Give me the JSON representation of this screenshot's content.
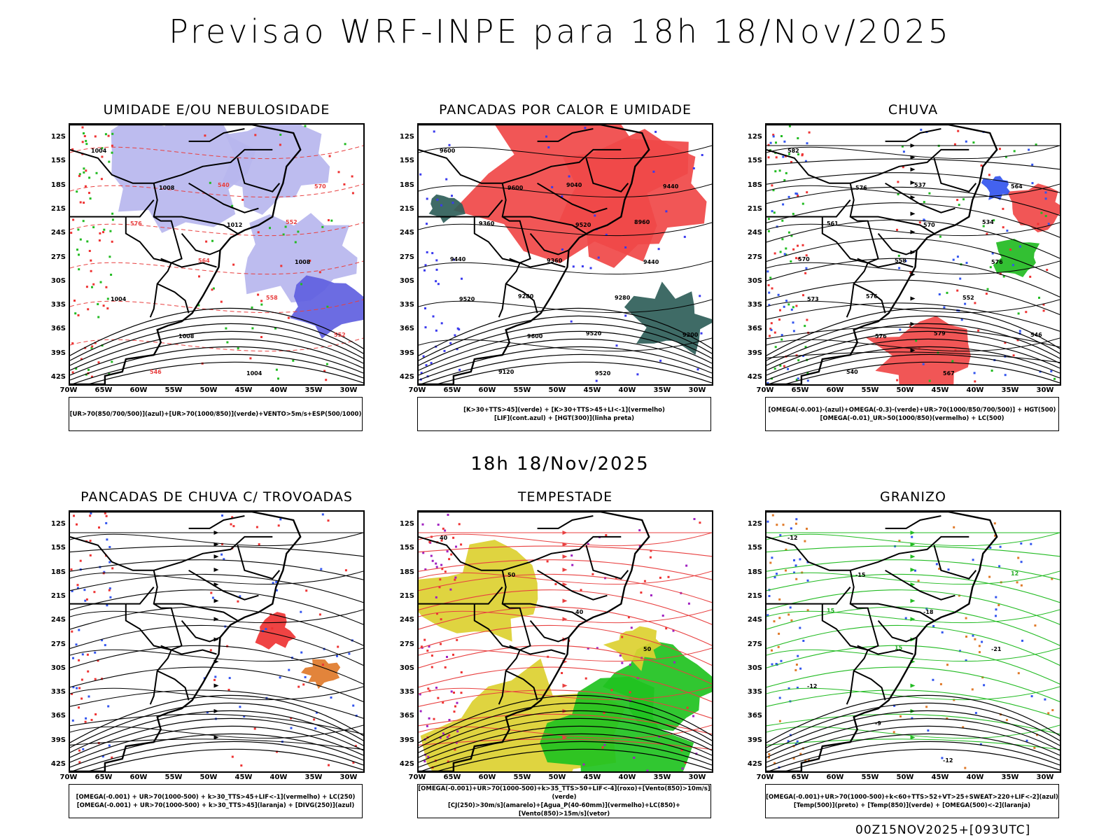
{
  "header": {
    "title": "Previsao WRF-INPE  para 18h 18/Nov/2025"
  },
  "mid_time": "18h 18/Nov/2025",
  "footer": "00Z15NOV2025+[093UTC]",
  "axes": {
    "lat_labels": [
      "12S",
      "15S",
      "18S",
      "21S",
      "24S",
      "27S",
      "30S",
      "33S",
      "36S",
      "39S",
      "42S"
    ],
    "lon_labels": [
      "70W",
      "65W",
      "60W",
      "55W",
      "50W",
      "45W",
      "40W",
      "35W",
      "30W"
    ]
  },
  "panels": [
    {
      "title": "UMIDADE E/OU NEBULOSIDADE",
      "legend": [
        "[UR>70(850/700/500)](azul)+[UR>70(1000/850)](verde)+VENTO>5m/s+ESP(500/1000)"
      ],
      "contour_labels": [
        "1004",
        "1008",
        "1012",
        "1008",
        "1004",
        "1008",
        "1004",
        "570",
        "576",
        "564",
        "558",
        "552",
        "546",
        "540",
        "552"
      ]
    },
    {
      "title": "PANCADAS POR CALOR E UMIDADE",
      "legend": [
        "[K>30+TTS>45](verde) + [K>30+TTS>45+LI<-1](vermelho)",
        "[LIF](cont.azul) + [HGT(300)](linha preta)"
      ],
      "contour_labels": [
        "9600",
        "9600",
        "9520",
        "9440",
        "9520",
        "9600",
        "9520",
        "9440",
        "9360",
        "9360",
        "9280",
        "9200",
        "9120",
        "9040",
        "8960",
        "9440",
        "9280",
        "9520"
      ]
    },
    {
      "title": "CHUVA",
      "legend": [
        "[OMEGA(-0.001)-(azul)+OMEGA(-0.3)-(verde)+UR>70(1000/850/700/500)] + HGT(500)",
        "[OMEGA(-0.01)_UR>50(1000/850)(vermelho) + LC(500)"
      ],
      "contour_labels": [
        "582",
        "576",
        "570",
        "576",
        "573",
        "576",
        "567",
        "564",
        "561",
        "558",
        "552",
        "546",
        "540",
        "537",
        "534",
        "570",
        "576",
        "579"
      ]
    },
    {
      "title": "PANCADAS DE CHUVA C/ TROVOADAS",
      "legend": [
        "[OMEGA(-0.001) + UR>70(1000-500) + k>30_TTS>45+LIF<-1](vermelho) + LC(250)",
        "[OMEGA(-0.001) + UR>70(1000-500) + k>30_TTS>45](laranja) + [DIVG(250)](azul)"
      ],
      "contour_labels": []
    },
    {
      "title": "TEMPESTADE",
      "legend": [
        "[OMEGA(-0.001)+UR>70(1000-500)+k>35_TTS>50+LIF<-4](roxo)+[Vento(850)>10m/s](verde)",
        "[CJ(250)>30m/s](amarelo)+[Agua_P(40-60mm)](vermelho)+LC(850)+[Vento(850)>15m/s](vetor)"
      ],
      "contour_labels": [
        "40",
        "50",
        "40",
        "50"
      ]
    },
    {
      "title": "GRANIZO",
      "legend": [
        "[OMEGA(-0.001)+UR>70(1000-500)+k<60+TTS>52+VT>25+SWEAT>220+LIF<-2](azul)",
        "[Temp(500)](preto) + [Temp(850)](verde) + [OMEGA(500)<-2](laranja)"
      ],
      "contour_labels": [
        "-12",
        "-15",
        "-18",
        "-21",
        "-12",
        "-9",
        "-12",
        "12",
        "15",
        "15"
      ]
    }
  ]
}
